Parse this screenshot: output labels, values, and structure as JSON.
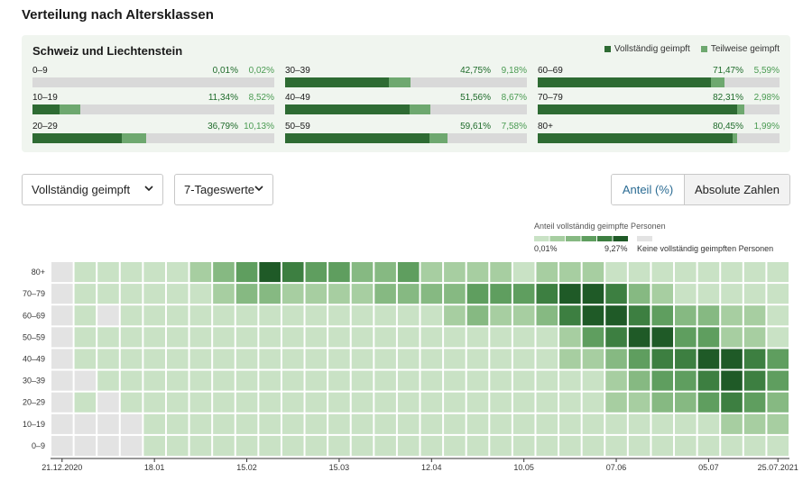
{
  "page": {
    "title": "Verteilung nach Altersklassen"
  },
  "summary": {
    "title": "Schweiz und Liechtenstein",
    "legend_full": "Vollständig geimpft",
    "legend_partial": "Teilweise geimpft",
    "colors": {
      "full": "#2e6b33",
      "partial": "#6ea86f",
      "empty": "#d9d9d9"
    },
    "groups": [
      {
        "label": "0–9",
        "full": "0,01%",
        "partial": "0,02%",
        "full_pct": 0.01,
        "partial_pct": 0.02
      },
      {
        "label": "10–19",
        "full": "11,34%",
        "partial": "8,52%",
        "full_pct": 11.34,
        "partial_pct": 8.52
      },
      {
        "label": "20–29",
        "full": "36,79%",
        "partial": "10,13%",
        "full_pct": 36.79,
        "partial_pct": 10.13
      },
      {
        "label": "30–39",
        "full": "42,75%",
        "partial": "9,18%",
        "full_pct": 42.75,
        "partial_pct": 9.18
      },
      {
        "label": "40–49",
        "full": "51,56%",
        "partial": "8,67%",
        "full_pct": 51.56,
        "partial_pct": 8.67
      },
      {
        "label": "50–59",
        "full": "59,61%",
        "partial": "7,58%",
        "full_pct": 59.61,
        "partial_pct": 7.58
      },
      {
        "label": "60–69",
        "full": "71,47%",
        "partial": "5,59%",
        "full_pct": 71.47,
        "partial_pct": 5.59
      },
      {
        "label": "70–79",
        "full": "82,31%",
        "partial": "2,98%",
        "full_pct": 82.31,
        "partial_pct": 2.98
      },
      {
        "label": "80+",
        "full": "80,45%",
        "partial": "1,99%",
        "full_pct": 80.45,
        "partial_pct": 1.99
      }
    ]
  },
  "controls": {
    "status_select": "Vollständig geimpft",
    "period_select": "7-Tageswerte",
    "toggle_share": "Anteil (%)",
    "toggle_absolute": "Absolute Zahlen"
  },
  "chart_data": {
    "type": "heatmap",
    "title": "Anteil vollständig geimpfte Personen",
    "scale_min": "0,01%",
    "scale_max": "9,27%",
    "no_data_label": "Keine vollständig geimpften Personen",
    "colors": [
      "#c9e2c5",
      "#a7cea1",
      "#86b982",
      "#5f9e5f",
      "#3d7f41",
      "#1f5a27"
    ],
    "no_data_color": "#e3e3e3",
    "y_categories": [
      "80+",
      "70–79",
      "60–69",
      "50–59",
      "40–49",
      "30–39",
      "20–29",
      "10–19",
      "0–9"
    ],
    "x_tick_labels": [
      "21.12.2020",
      "18.01",
      "15.02",
      "15.03",
      "12.04",
      "10.05",
      "07.06",
      "05.07",
      "25.07.2021"
    ],
    "x_tick_columns": [
      0,
      4,
      8,
      12,
      16,
      20,
      24,
      28,
      31
    ],
    "n_columns": 32,
    "levels": [
      [
        -1,
        0,
        0,
        0,
        0,
        0,
        1,
        2,
        3,
        5,
        4,
        3,
        3,
        2,
        2,
        3,
        1,
        1,
        1,
        1,
        0,
        1,
        1,
        1,
        0,
        0,
        0,
        0,
        0,
        0,
        0,
        0
      ],
      [
        -1,
        0,
        0,
        0,
        0,
        0,
        0,
        1,
        2,
        2,
        1,
        1,
        1,
        1,
        2,
        2,
        2,
        2,
        3,
        3,
        3,
        4,
        5,
        5,
        4,
        2,
        1,
        0,
        0,
        0,
        0,
        0
      ],
      [
        -1,
        0,
        -1,
        0,
        0,
        0,
        0,
        0,
        0,
        0,
        0,
        0,
        0,
        0,
        0,
        0,
        0,
        1,
        2,
        1,
        1,
        2,
        4,
        5,
        5,
        4,
        3,
        2,
        2,
        1,
        1,
        0
      ],
      [
        -1,
        0,
        0,
        0,
        0,
        0,
        0,
        0,
        0,
        0,
        0,
        0,
        0,
        0,
        0,
        0,
        0,
        0,
        0,
        0,
        0,
        0,
        1,
        3,
        4,
        5,
        5,
        3,
        3,
        1,
        1,
        0
      ],
      [
        -1,
        0,
        0,
        0,
        0,
        0,
        0,
        0,
        0,
        0,
        0,
        0,
        0,
        0,
        0,
        0,
        0,
        0,
        0,
        0,
        0,
        0,
        1,
        1,
        2,
        3,
        4,
        4,
        5,
        5,
        4,
        3
      ],
      [
        -1,
        -1,
        0,
        0,
        0,
        0,
        0,
        0,
        0,
        0,
        0,
        0,
        0,
        0,
        0,
        0,
        0,
        0,
        0,
        0,
        0,
        0,
        0,
        0,
        1,
        2,
        3,
        3,
        4,
        5,
        4,
        3
      ],
      [
        -1,
        0,
        -1,
        0,
        0,
        0,
        0,
        0,
        0,
        0,
        0,
        0,
        0,
        0,
        0,
        0,
        0,
        0,
        0,
        0,
        0,
        0,
        0,
        0,
        1,
        1,
        2,
        2,
        3,
        4,
        3,
        2
      ],
      [
        -1,
        -1,
        -1,
        -1,
        0,
        0,
        0,
        0,
        0,
        0,
        0,
        0,
        0,
        0,
        0,
        0,
        0,
        0,
        0,
        0,
        0,
        0,
        0,
        0,
        0,
        0,
        0,
        0,
        0,
        1,
        1,
        1
      ],
      [
        -1,
        -1,
        -1,
        -1,
        0,
        0,
        0,
        0,
        0,
        0,
        0,
        0,
        0,
        0,
        0,
        0,
        0,
        0,
        0,
        0,
        0,
        0,
        0,
        0,
        0,
        0,
        0,
        0,
        0,
        0,
        0,
        0
      ]
    ]
  }
}
